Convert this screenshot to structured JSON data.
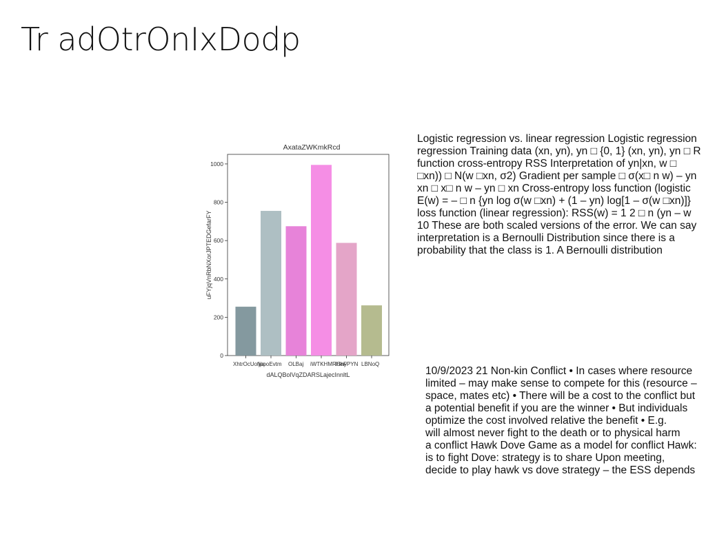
{
  "slide": {
    "title": "Tr adOtrOnIxDodp"
  },
  "text_blocks": {
    "block_a": "Logistic regression vs. linear regression Logistic regression\nregression Training data (xn, yn), yn □ {0, 1} (xn, yn), yn □ R\nfunction cross-entropy RSS Interpretation of yn|xn, w □\n□xn)) □ N(w □xn, σ2) Gradient per sample □ σ(x□ n w) – yn\nxn □ x□ n w – yn □ xn Cross-entropy loss function (logistic\nE(w) = – □ n {yn log σ(w □xn) + (1 – yn) log[1 – σ(w □xn)]}\nloss function (linear regression): RSS(w) = 1 2 □ n (yn – w\n10 These are both scaled versions of the error. We can say\ninterpretation is a Bernoulli Distribution since there is a\nprobability that the class is 1. A Bernoulli distribution",
    "block_b": "10/9/2023 21 Non-kin Conflict • In cases where resource\nlimited – may make sense to compete for this (resource –\nspace, mates etc) • There will be a cost to the conflict but\na potential benefit if you are the winner • But individuals\noptimize the cost involved relative the benefit • E.g.\nwill almost never fight to the death or to physical harm\na conflict Hawk Dove Game as a model for conflict Hawk:\nis to fight Dove: strategy is to share Upon meeting,\ndecide to play hawk vs dove strategy – the ESS depends"
  },
  "chart_data": {
    "type": "bar",
    "title": "AxataZWKmkRcd",
    "xlabel": "dALQBolVqZDARSLajecInnltL",
    "ylabel": "uFYjqVnRbNXorJPTEDGefarFY",
    "categories": [
      "XhtrOcUoniq",
      "fjpooEvtm",
      "OLBaj",
      "iWTKHMRHhF",
      "IGnyPYN",
      "LBNoQ"
    ],
    "values": [
      255,
      755,
      675,
      995,
      588,
      262
    ],
    "colors": [
      "#84999f",
      "#aebfc3",
      "#e783d9",
      "#f58ee5",
      "#e4a5c8",
      "#b5bb8f"
    ],
    "ylim": [
      0,
      1050
    ],
    "yticks": [
      "0",
      "200",
      "400",
      "600",
      "800",
      "1000"
    ],
    "grid": false
  }
}
